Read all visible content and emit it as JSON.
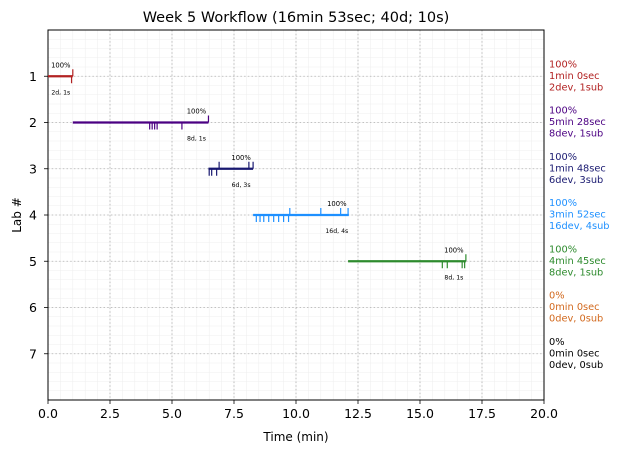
{
  "chart_data": {
    "type": "line",
    "title": "Week 5 Workflow (16min 53sec; 40d; 10s)",
    "xlabel": "Time (min)",
    "ylabel": "Lab #",
    "xlim": [
      0,
      20
    ],
    "ylim": [
      8,
      0
    ],
    "xticks": [
      "0.0",
      "2.5",
      "5.0",
      "7.5",
      "10.0",
      "12.5",
      "15.0",
      "17.5",
      "20.0"
    ],
    "yticks": [
      "1",
      "2",
      "3",
      "4",
      "5",
      "6",
      "7"
    ],
    "grid": true,
    "labs": [
      {
        "lab": 1,
        "color": "#b22222",
        "start": 0.0,
        "end": 1.0,
        "pct": "100%",
        "counts": "2d, 1s",
        "dev_ticks": [
          0.95
        ],
        "sub_ticks": [
          1.0
        ],
        "side": [
          "100%",
          "1min 0sec",
          "2dev, 1sub"
        ]
      },
      {
        "lab": 2,
        "color": "#4b0082",
        "start": 1.0,
        "end": 6.47,
        "pct": "100%",
        "counts": "8d, 1s",
        "dev_ticks": [
          4.1,
          4.2,
          4.3,
          4.4,
          5.4
        ],
        "sub_ticks": [
          6.47
        ],
        "side": [
          "100%",
          "5min 28sec",
          "8dev, 1sub"
        ]
      },
      {
        "lab": 3,
        "color": "#191970",
        "start": 6.47,
        "end": 8.27,
        "pct": "100%",
        "counts": "6d, 3s",
        "dev_ticks": [
          6.5,
          6.6,
          6.8
        ],
        "sub_ticks": [
          6.9,
          8.1,
          8.27
        ],
        "side": [
          "100%",
          "1min 48sec",
          "6dev, 3sub"
        ]
      },
      {
        "lab": 4,
        "color": "#1e90ff",
        "start": 8.27,
        "end": 12.13,
        "pct": "100%",
        "counts": "16d, 4s",
        "dev_ticks": [
          8.4,
          8.55,
          8.7,
          8.9,
          9.1,
          9.3,
          9.5,
          9.7
        ],
        "sub_ticks": [
          9.75,
          11.0,
          11.8,
          12.1
        ],
        "side": [
          "100%",
          "3min 52sec",
          "16dev, 4sub"
        ]
      },
      {
        "lab": 5,
        "color": "#2e8b2e",
        "start": 12.1,
        "end": 16.85,
        "pct": "100%",
        "counts": "8d, 1s",
        "dev_ticks": [
          15.9,
          16.1,
          16.7,
          16.8
        ],
        "sub_ticks": [
          16.85
        ],
        "side": [
          "100%",
          "4min 45sec",
          "8dev, 1sub"
        ]
      },
      {
        "lab": 6,
        "color": "#d2691e",
        "side": [
          "0%",
          "0min 0sec",
          "0dev, 0sub"
        ]
      },
      {
        "lab": 7,
        "color": "#000000",
        "side": [
          "0%",
          "0min 0sec",
          "0dev, 0sub"
        ]
      }
    ]
  }
}
